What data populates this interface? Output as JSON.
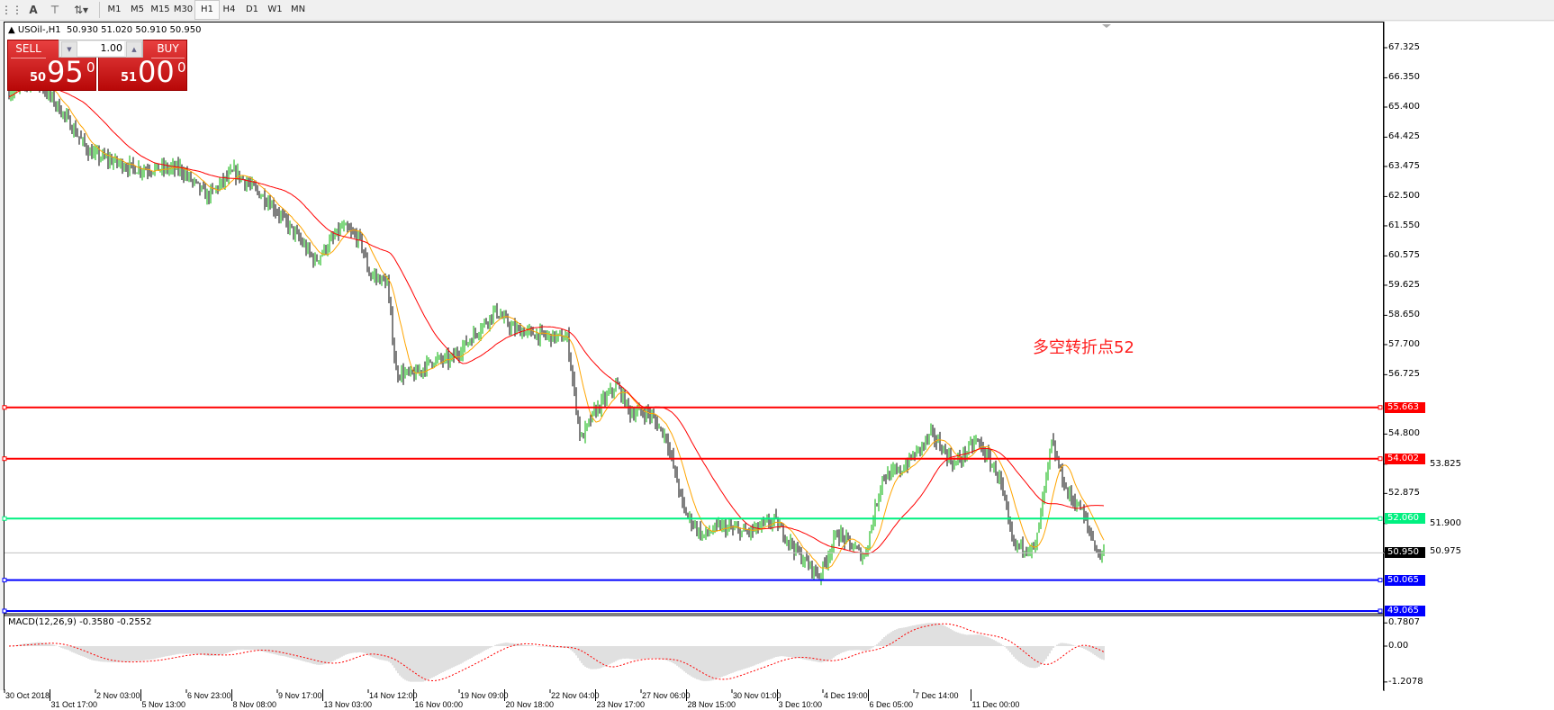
{
  "toolbar": {
    "tools": [
      {
        "icon": "fibonacci-fan-icon"
      },
      {
        "icon": "text-icon",
        "label": "A"
      },
      {
        "icon": "text-label-icon"
      },
      {
        "icon": "arrows-icon"
      }
    ],
    "timeframes": [
      "M1",
      "M5",
      "M15",
      "M30",
      "H1",
      "H4",
      "D1",
      "W1",
      "MN"
    ],
    "active_timeframe": "H1"
  },
  "chart": {
    "symbol": "USOil-,H1",
    "ohlc": "50.930 51.020 50.910 50.950",
    "annotation": "多空转折点52",
    "current_price": "50.950",
    "price_axis": [
      "67.325",
      "66.350",
      "65.400",
      "64.425",
      "63.475",
      "62.500",
      "61.550",
      "60.575",
      "59.625",
      "58.650",
      "57.700",
      "56.725",
      "54.800",
      "53.825",
      "52.875",
      "51.900",
      "50.975"
    ],
    "levels": [
      {
        "price": "55.663",
        "color": "#ff0000"
      },
      {
        "price": "54.002",
        "color": "#ff0000"
      },
      {
        "price": "52.060",
        "color": "#00f080"
      },
      {
        "price": "50.065",
        "color": "#0000ff"
      },
      {
        "price": "49.065",
        "color": "#0000ff"
      }
    ],
    "colors": {
      "up_bar": "#00b000",
      "down_bar": "#000000",
      "fast_ma": "#ffa500",
      "slow_ma": "#ff0000"
    },
    "dates": [
      "30 Oct 2018",
      "31 Oct 17:00",
      "2 Nov 03:00",
      "5 Nov 13:00",
      "6 Nov 23:00",
      "8 Nov 08:00",
      "9 Nov 17:00",
      "13 Nov 03:00",
      "14 Nov 12:00",
      "16 Nov 00:00",
      "19 Nov 09:00",
      "20 Nov 18:00",
      "22 Nov 04:00",
      "23 Nov 17:00",
      "27 Nov 06:00",
      "28 Nov 15:00",
      "30 Nov 01:00",
      "3 Dec 10:00",
      "4 Dec 19:00",
      "6 Dec 05:00",
      "7 Dec 14:00",
      "11 Dec 00:00"
    ]
  },
  "trade_panel": {
    "sell_label": "SELL",
    "buy_label": "BUY",
    "lot": "1.00",
    "sell_small": "50",
    "sell_big": "95",
    "sell_sup": "0",
    "buy_small": "51",
    "buy_big": "00",
    "buy_sup": "0"
  },
  "macd": {
    "title": "MACD(12,26,9) -0.3580 -0.2552",
    "axis": [
      "0.7807",
      "0.00",
      "-1.2078"
    ],
    "histogram_color": "#c0c0c0",
    "signal_color": "#ff0000"
  }
}
